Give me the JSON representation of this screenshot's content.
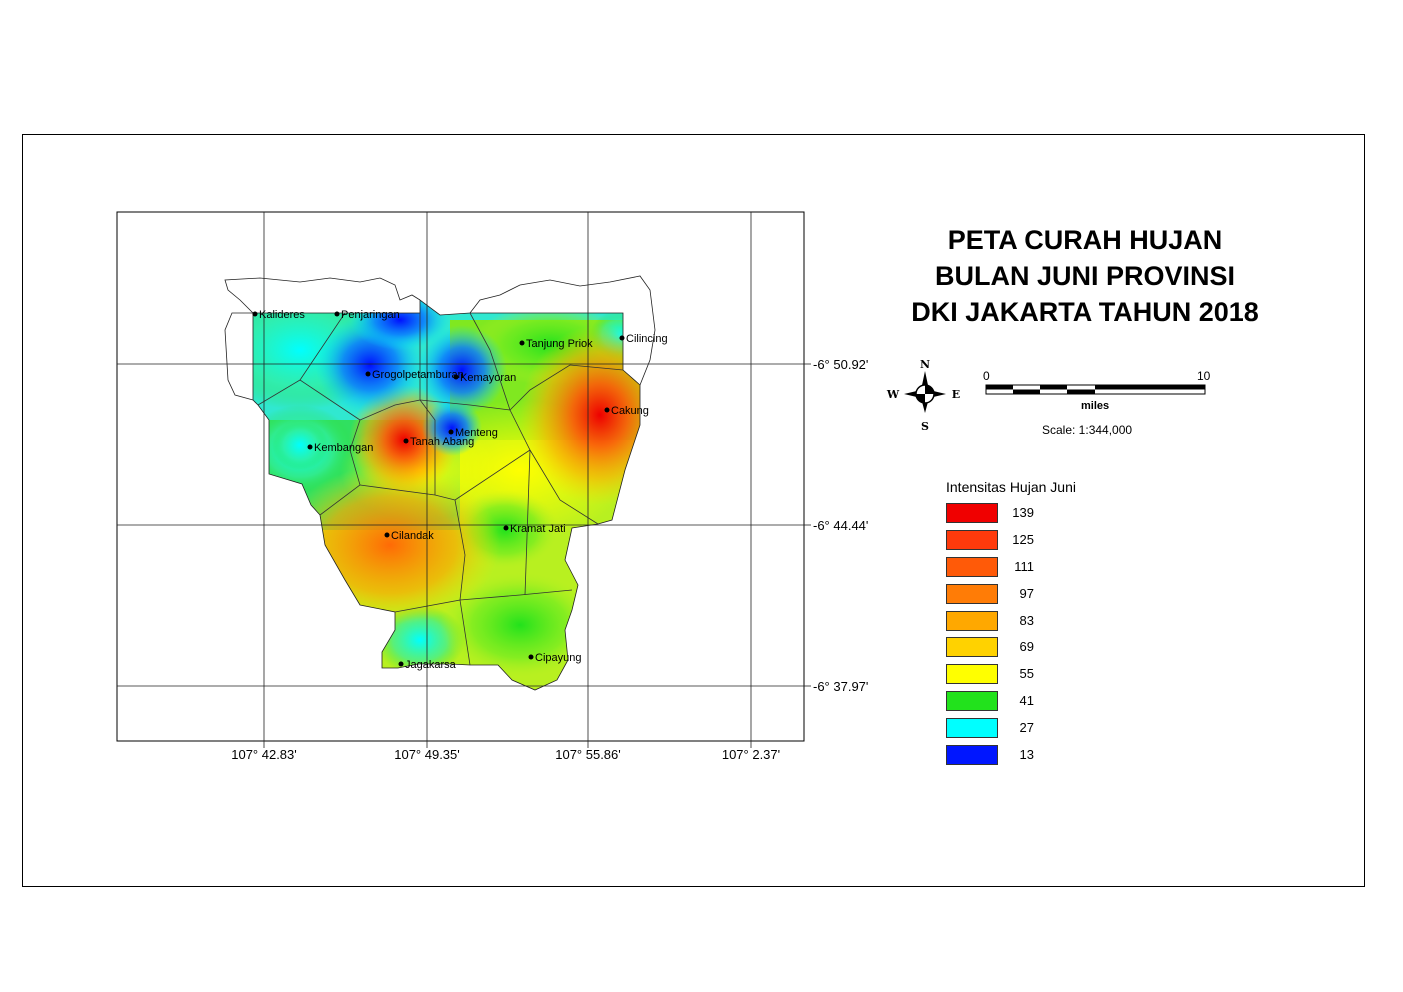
{
  "title_lines": [
    "PETA CURAH HUJAN",
    "BULAN JUNI PROVINSI",
    "DKI JAKARTA TAHUN 2018"
  ],
  "grid": {
    "lon_labels": [
      "107° 42.83'",
      "107° 49.35'",
      "107° 55.86'",
      "107° 2.37'"
    ],
    "lat_labels": [
      "-6° 50.92'",
      "-6° 44.44'",
      "-6° 37.97'"
    ]
  },
  "stations": [
    {
      "name": "Kalideres"
    },
    {
      "name": "Penjaringan"
    },
    {
      "name": "Tanjung Priok"
    },
    {
      "name": "Cilincing"
    },
    {
      "name": "Grogolpetamburan"
    },
    {
      "name": "Kemayoran"
    },
    {
      "name": "Cakung"
    },
    {
      "name": "Kembangan"
    },
    {
      "name": "Tanah Abang"
    },
    {
      "name": "Menteng"
    },
    {
      "name": "Cilandak"
    },
    {
      "name": "Kramat Jati"
    },
    {
      "name": "Jagakarsa"
    },
    {
      "name": "Cipayung"
    }
  ],
  "compass": {
    "n": "N",
    "s": "S",
    "e": "E",
    "w": "W",
    "icon": "north-arrow-icon"
  },
  "scale_bar": {
    "start": "0",
    "end": "10",
    "unit": "miles",
    "scale_text": "Scale: 1:344,000"
  },
  "legend": {
    "title": "Intensitas Hujan Juni",
    "items": [
      {
        "value": "139",
        "color": "#f00000"
      },
      {
        "value": "125",
        "color": "#ff3a0c"
      },
      {
        "value": "111",
        "color": "#ff5a08"
      },
      {
        "value": "97",
        "color": "#ff7c06"
      },
      {
        "value": "83",
        "color": "#ffa800"
      },
      {
        "value": "69",
        "color": "#ffd200"
      },
      {
        "value": "55",
        "color": "#ffff00"
      },
      {
        "value": "41",
        "color": "#22e21c"
      },
      {
        "value": "27",
        "color": "#00ffff"
      },
      {
        "value": "13",
        "color": "#0016ff"
      }
    ]
  }
}
